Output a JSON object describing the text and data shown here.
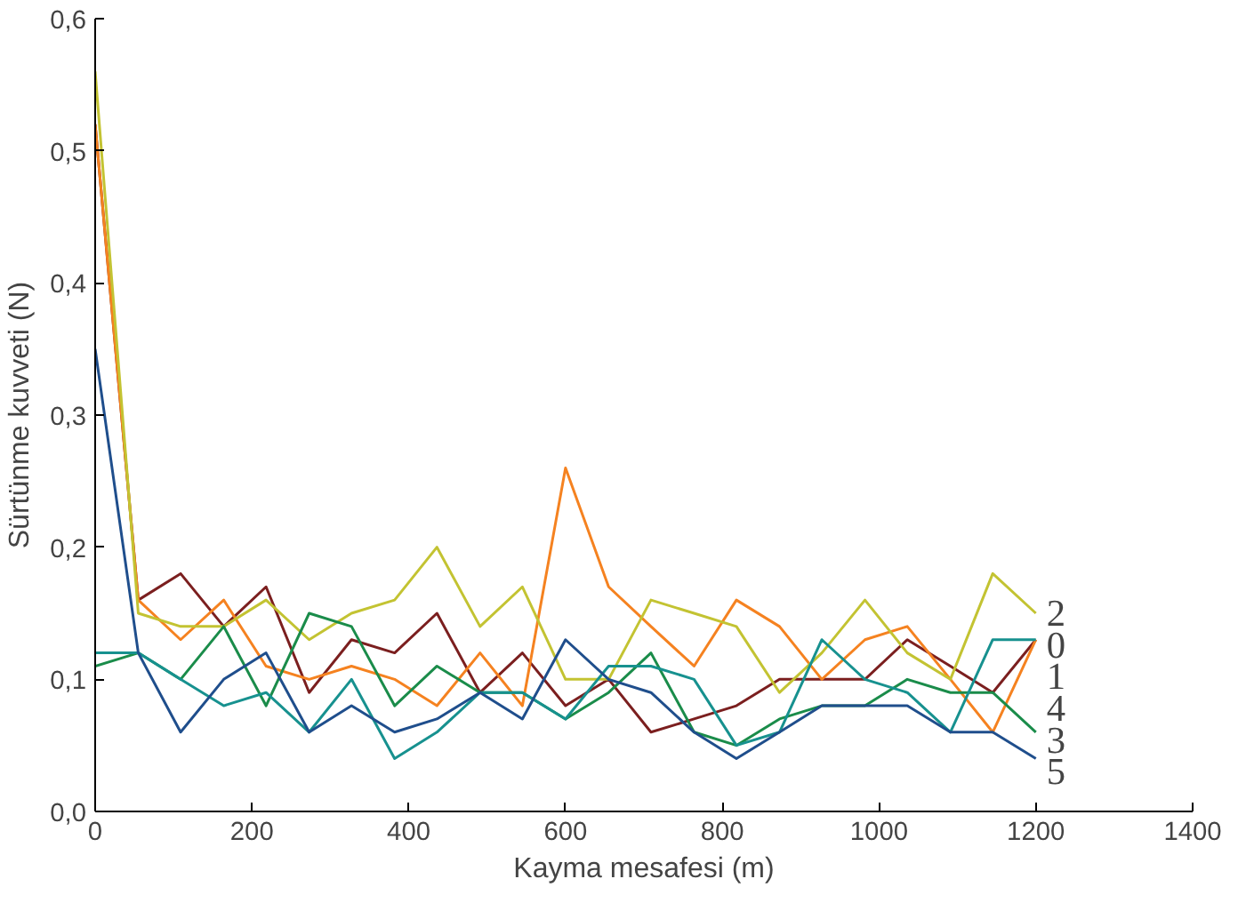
{
  "chart_data": {
    "type": "line",
    "xlabel": "Kayma mesafesi (m)",
    "ylabel": "Sürtünme kuvveti (N)",
    "x": [
      0,
      55,
      109,
      164,
      218,
      273,
      327,
      382,
      436,
      491,
      545,
      600,
      655,
      709,
      764,
      818,
      873,
      927,
      982,
      1036,
      1091,
      1145,
      1200
    ],
    "series": [
      {
        "name": "0",
        "color": "#7b1f1f",
        "values": [
          0.52,
          0.16,
          0.18,
          0.14,
          0.17,
          0.09,
          0.13,
          0.12,
          0.15,
          0.09,
          0.12,
          0.08,
          0.1,
          0.06,
          0.07,
          0.08,
          0.1,
          0.1,
          0.1,
          0.13,
          0.11,
          0.09,
          0.13
        ]
      },
      {
        "name": "1",
        "color": "#f58220",
        "values": [
          0.52,
          0.16,
          0.13,
          0.16,
          0.11,
          0.1,
          0.11,
          0.1,
          0.08,
          0.12,
          0.08,
          0.26,
          0.17,
          0.14,
          0.11,
          0.16,
          0.14,
          0.1,
          0.13,
          0.14,
          0.1,
          0.06,
          0.13
        ]
      },
      {
        "name": "2",
        "color": "#c3c332",
        "values": [
          0.56,
          0.15,
          0.14,
          0.14,
          0.16,
          0.13,
          0.15,
          0.16,
          0.2,
          0.14,
          0.17,
          0.1,
          0.1,
          0.16,
          0.15,
          0.14,
          0.09,
          0.12,
          0.16,
          0.12,
          0.1,
          0.18,
          0.15
        ]
      },
      {
        "name": "3",
        "color": "#1a8c4a",
        "values": [
          0.11,
          0.12,
          0.1,
          0.14,
          0.08,
          0.15,
          0.14,
          0.08,
          0.11,
          0.09,
          0.09,
          0.07,
          0.09,
          0.12,
          0.06,
          0.05,
          0.07,
          0.08,
          0.08,
          0.1,
          0.09,
          0.09,
          0.06
        ]
      },
      {
        "name": "4",
        "color": "#17918f",
        "values": [
          0.12,
          0.12,
          0.1,
          0.08,
          0.09,
          0.06,
          0.1,
          0.04,
          0.06,
          0.09,
          0.09,
          0.07,
          0.11,
          0.11,
          0.1,
          0.05,
          0.06,
          0.13,
          0.1,
          0.09,
          0.06,
          0.13,
          0.13
        ]
      },
      {
        "name": "5",
        "color": "#1f4e8c",
        "values": [
          0.35,
          0.12,
          0.06,
          0.1,
          0.12,
          0.06,
          0.08,
          0.06,
          0.07,
          0.09,
          0.07,
          0.13,
          0.1,
          0.09,
          0.06,
          0.04,
          0.06,
          0.08,
          0.08,
          0.08,
          0.06,
          0.06,
          0.04
        ]
      }
    ],
    "xlim": [
      0,
      1400
    ],
    "xticks": [
      0,
      200,
      400,
      600,
      800,
      1000,
      1200,
      1400
    ],
    "ylim": [
      0,
      0.6
    ],
    "yticks": [
      {
        "value": 0,
        "label": "0,0"
      },
      {
        "value": 0.1,
        "label": "0,1"
      },
      {
        "value": 0.2,
        "label": "0,2"
      },
      {
        "value": 0.3,
        "label": "0,3"
      },
      {
        "value": 0.4,
        "label": "0,4"
      },
      {
        "value": 0.5,
        "label": "0,5"
      },
      {
        "value": 0.6,
        "label": "0,6"
      }
    ],
    "grid": false,
    "legend": false,
    "marker": "none",
    "line_style": "solid"
  }
}
